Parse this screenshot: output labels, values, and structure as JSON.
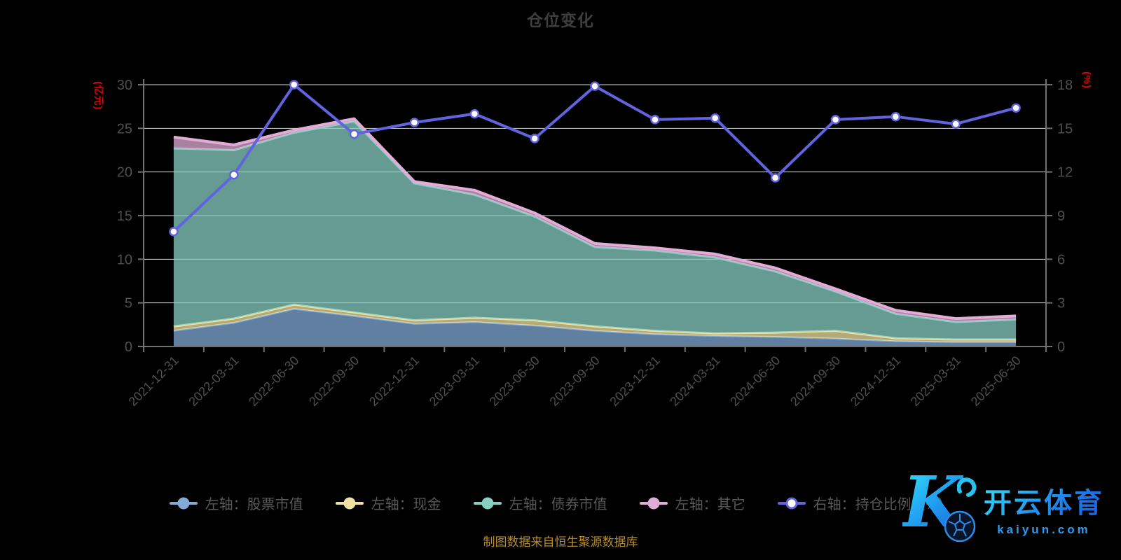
{
  "title": "仓位变化",
  "footer": {
    "text": "制图数据来自恒生聚源数据库"
  },
  "watermark": {
    "k": "K",
    "brand": "开云体育",
    "domain": "kaiyun.com",
    "gradient": [
      "#3ae6f8",
      "#1b55d8"
    ],
    "domain_color": "#2b9df0"
  },
  "colors": {
    "background": "#000000",
    "grid_line": "#d9d9d9",
    "axis_line": "#6f6f6f",
    "tick_label": "#4f4f4f",
    "title_text": "#3e3e3e",
    "legend_text": "#585858",
    "axis_unit_red": "#e60000",
    "footer_gold": "#b88c2b"
  },
  "chart_data": {
    "type": "area",
    "title": "仓位变化",
    "categories": [
      "2021-12-31",
      "2022-03-31",
      "2022-06-30",
      "2022-09-30",
      "2022-12-31",
      "2023-03-31",
      "2023-06-30",
      "2023-09-30",
      "2023-12-31",
      "2024-03-31",
      "2024-06-30",
      "2024-09-30",
      "2024-12-31",
      "2025-03-31",
      "2025-06-30"
    ],
    "series": [
      {
        "name": "左轴：股票市值",
        "type": "area",
        "stack": true,
        "axis": "left",
        "color": "#82aad7",
        "values": [
          1.8,
          2.7,
          4.3,
          3.5,
          2.6,
          2.8,
          2.4,
          1.8,
          1.4,
          1.2,
          1.1,
          0.9,
          0.6,
          0.5,
          0.5
        ]
      },
      {
        "name": "左轴：现金",
        "type": "area",
        "stack": true,
        "axis": "left",
        "color": "#f0e2a0",
        "values": [
          0.5,
          0.5,
          0.5,
          0.4,
          0.4,
          0.5,
          0.6,
          0.5,
          0.4,
          0.3,
          0.5,
          0.9,
          0.35,
          0.3,
          0.3
        ]
      },
      {
        "name": "左轴：债券市值",
        "type": "area",
        "stack": true,
        "axis": "left",
        "color": "#87cfc3",
        "values": [
          20.4,
          19.3,
          19.7,
          21.9,
          15.7,
          14.1,
          11.9,
          9.1,
          9.2,
          8.7,
          7.0,
          4.5,
          2.8,
          2.0,
          2.3
        ]
      },
      {
        "name": "左轴：其它",
        "type": "area",
        "stack": true,
        "axis": "left",
        "color": "#e2acd6",
        "values": [
          1.3,
          0.6,
          0.3,
          0.3,
          0.2,
          0.5,
          0.4,
          0.4,
          0.3,
          0.4,
          0.4,
          0.3,
          0.4,
          0.4,
          0.4
        ]
      },
      {
        "name": "右轴：持仓比例（%）",
        "type": "line",
        "stack": false,
        "axis": "right",
        "color": "#6263de",
        "marker": "circle-white",
        "values": [
          7.9,
          11.8,
          18.0,
          14.6,
          15.4,
          16.0,
          14.3,
          17.9,
          15.6,
          15.7,
          11.6,
          15.6,
          15.8,
          15.3,
          16.4
        ]
      }
    ],
    "left_axis": {
      "unit": "(亿元)",
      "min": 0,
      "max": 30,
      "ticks": [
        0,
        5,
        10,
        15,
        20,
        25,
        30
      ]
    },
    "right_axis": {
      "unit": "(%)",
      "min": 0,
      "max": 18,
      "ticks": [
        0,
        3,
        6,
        9,
        12,
        15,
        18
      ]
    },
    "grid": true,
    "legend_position": "bottom",
    "x_label_rotation": 45
  }
}
